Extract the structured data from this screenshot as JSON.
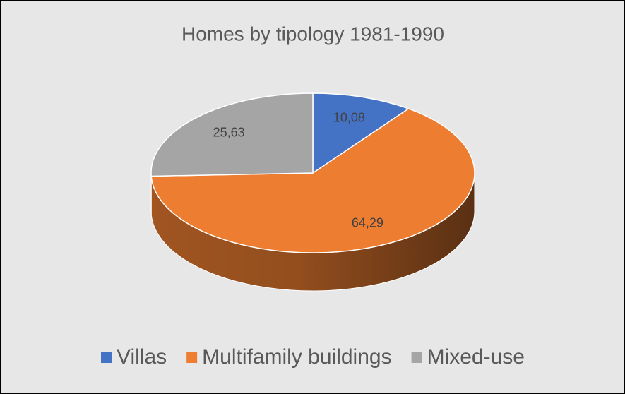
{
  "chart_data": {
    "type": "pie",
    "title": "Homes by tipology 1981-1990",
    "categories": [
      "Villas",
      "Multifamily buildings",
      "Mixed-use"
    ],
    "values": [
      10.08,
      64.29,
      25.63
    ],
    "value_labels": [
      "10,08",
      "64,29",
      "25,63"
    ],
    "colors": [
      "#4472c4",
      "#ed7d31",
      "#a5a5a5"
    ],
    "legend": "bottom"
  }
}
